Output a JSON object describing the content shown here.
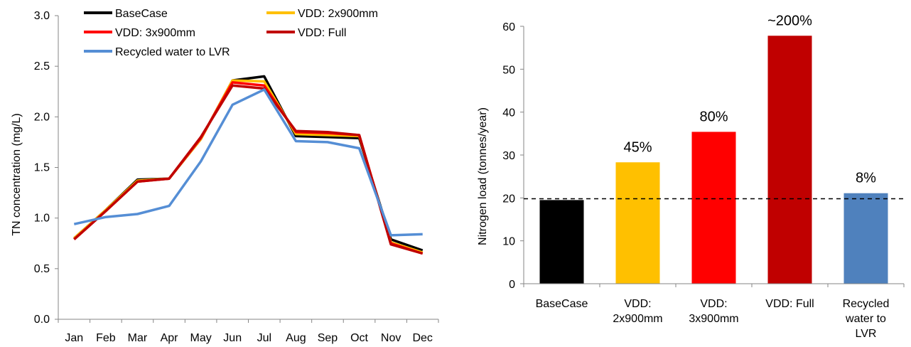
{
  "chart_data": [
    {
      "type": "line",
      "title": "",
      "xlabel": "",
      "ylabel": "TN concentration (mg/L)",
      "categories": [
        "Jan",
        "Feb",
        "Mar",
        "Apr",
        "May",
        "Jun",
        "Jul",
        "Aug",
        "Sep",
        "Oct",
        "Nov",
        "Dec"
      ],
      "y_ticks": [
        "0.0",
        "0.5",
        "1.0",
        "1.5",
        "2.0",
        "2.5",
        "3.0"
      ],
      "ylim": [
        0,
        3
      ],
      "grid": false,
      "legend_position": "top",
      "series": [
        {
          "name": "BaseCase",
          "color": "#000000",
          "values": [
            0.8,
            1.08,
            1.38,
            1.39,
            1.78,
            2.36,
            2.4,
            1.81,
            1.8,
            1.79,
            0.79,
            0.68
          ]
        },
        {
          "name": "VDD: 2x900mm",
          "color": "#FFC000",
          "values": [
            0.8,
            1.08,
            1.37,
            1.39,
            1.78,
            2.36,
            2.35,
            1.83,
            1.82,
            1.81,
            0.76,
            0.66
          ]
        },
        {
          "name": "VDD: 3x900mm",
          "color": "#FF0000",
          "values": [
            0.79,
            1.07,
            1.36,
            1.39,
            1.79,
            2.34,
            2.31,
            1.85,
            1.84,
            1.82,
            0.75,
            0.65
          ]
        },
        {
          "name": "VDD: Full",
          "color": "#C00000",
          "values": [
            0.79,
            1.07,
            1.36,
            1.39,
            1.8,
            2.31,
            2.28,
            1.86,
            1.85,
            1.82,
            0.74,
            0.65
          ]
        },
        {
          "name": "Recycled water to LVR",
          "color": "#558ED5",
          "values": [
            0.94,
            1.01,
            1.04,
            1.12,
            1.56,
            2.12,
            2.27,
            1.76,
            1.75,
            1.69,
            0.83,
            0.84
          ]
        }
      ]
    },
    {
      "type": "bar",
      "title": "",
      "xlabel": "",
      "ylabel": "Nitrogen load (tonnes/year)",
      "categories": [
        [
          "BaseCase"
        ],
        [
          "VDD:",
          "2x900mm"
        ],
        [
          "VDD:",
          "3x900mm"
        ],
        [
          "VDD: Full"
        ],
        [
          "Recycled",
          "water to",
          "LVR"
        ]
      ],
      "values": [
        19.5,
        28.3,
        35.4,
        57.8,
        21.1
      ],
      "colors": [
        "#000000",
        "#FFC000",
        "#FF0000",
        "#C00000",
        "#4F81BD"
      ],
      "data_labels": [
        "",
        "45%",
        "80%",
        "~200%",
        "8%"
      ],
      "y_ticks": [
        "0",
        "10",
        "20",
        "30",
        "40",
        "50",
        "60"
      ],
      "ylim": [
        0,
        60
      ],
      "reference_line": {
        "y": 19.8,
        "style": "dashed",
        "color": "#000000"
      },
      "grid": false
    }
  ]
}
